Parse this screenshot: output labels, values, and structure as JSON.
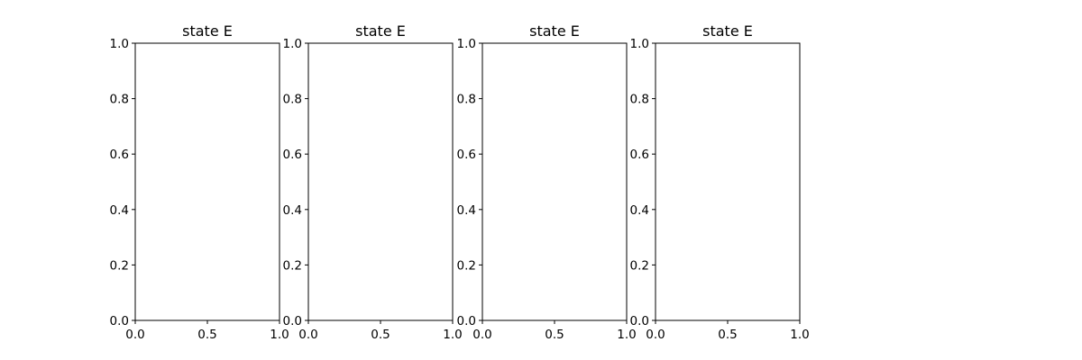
{
  "chart_data": [
    {
      "type": "line",
      "title": "state E",
      "xlabel": "",
      "ylabel": "",
      "xlim": [
        0.0,
        1.0
      ],
      "ylim": [
        0.0,
        1.0
      ],
      "xticks": [
        "0.0",
        "0.5",
        "1.0"
      ],
      "yticks": [
        "0.0",
        "0.2",
        "0.4",
        "0.6",
        "0.8",
        "1.0"
      ],
      "series": [],
      "grid": false
    },
    {
      "type": "line",
      "title": "state E",
      "xlabel": "",
      "ylabel": "",
      "xlim": [
        0.0,
        1.0
      ],
      "ylim": [
        0.0,
        1.0
      ],
      "xticks": [
        "0.0",
        "0.5",
        "1.0"
      ],
      "yticks": [
        "0.0",
        "0.2",
        "0.4",
        "0.6",
        "0.8",
        "1.0"
      ],
      "series": [],
      "grid": false
    },
    {
      "type": "line",
      "title": "state E",
      "xlabel": "",
      "ylabel": "",
      "xlim": [
        0.0,
        1.0
      ],
      "ylim": [
        0.0,
        1.0
      ],
      "xticks": [
        "0.0",
        "0.5",
        "1.0"
      ],
      "yticks": [
        "0.0",
        "0.2",
        "0.4",
        "0.6",
        "0.8",
        "1.0"
      ],
      "series": [],
      "grid": false
    },
    {
      "type": "line",
      "title": "state E",
      "xlabel": "",
      "ylabel": "",
      "xlim": [
        0.0,
        1.0
      ],
      "ylim": [
        0.0,
        1.0
      ],
      "xticks": [
        "0.0",
        "0.5",
        "1.0"
      ],
      "yticks": [
        "0.0",
        "0.2",
        "0.4",
        "0.6",
        "0.8",
        "1.0"
      ],
      "series": [],
      "grid": false
    }
  ]
}
